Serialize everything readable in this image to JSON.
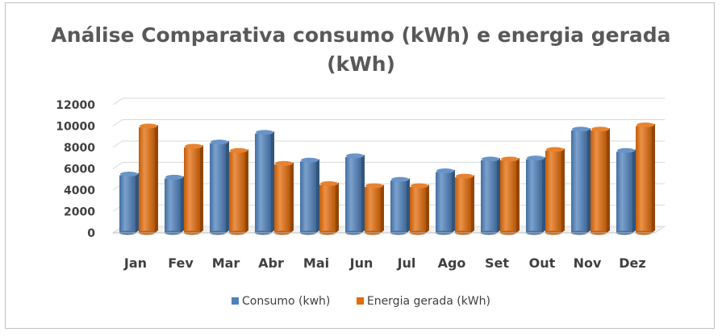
{
  "chart_data": {
    "type": "bar",
    "title_line1": "Análise Comparativa consumo (kWh) e energia gerada",
    "title_line2": "(kWh)",
    "categories": [
      "Jan",
      "Fev",
      "Mar",
      "Abr",
      "Mai",
      "Jun",
      "Jul",
      "Ago",
      "Set",
      "Out",
      "Nov",
      "Dez"
    ],
    "series": [
      {
        "name": "Consumo (kwh)",
        "color": "#4f81bd",
        "values": [
          5400,
          5100,
          8400,
          9300,
          6700,
          7100,
          4900,
          5700,
          6800,
          6900,
          9600,
          7600
        ]
      },
      {
        "name": "Energia gerada (kWh)",
        "color": "#e46c0a",
        "values": [
          9900,
          8000,
          7600,
          6400,
          4500,
          4300,
          4300,
          5200,
          6800,
          7700,
          9600,
          10000
        ]
      }
    ],
    "yticks": [
      "0",
      "2000",
      "4000",
      "6000",
      "8000",
      "10000",
      "12000"
    ],
    "ylim": [
      0,
      12000
    ],
    "grid": true,
    "legend_position": "bottom"
  }
}
